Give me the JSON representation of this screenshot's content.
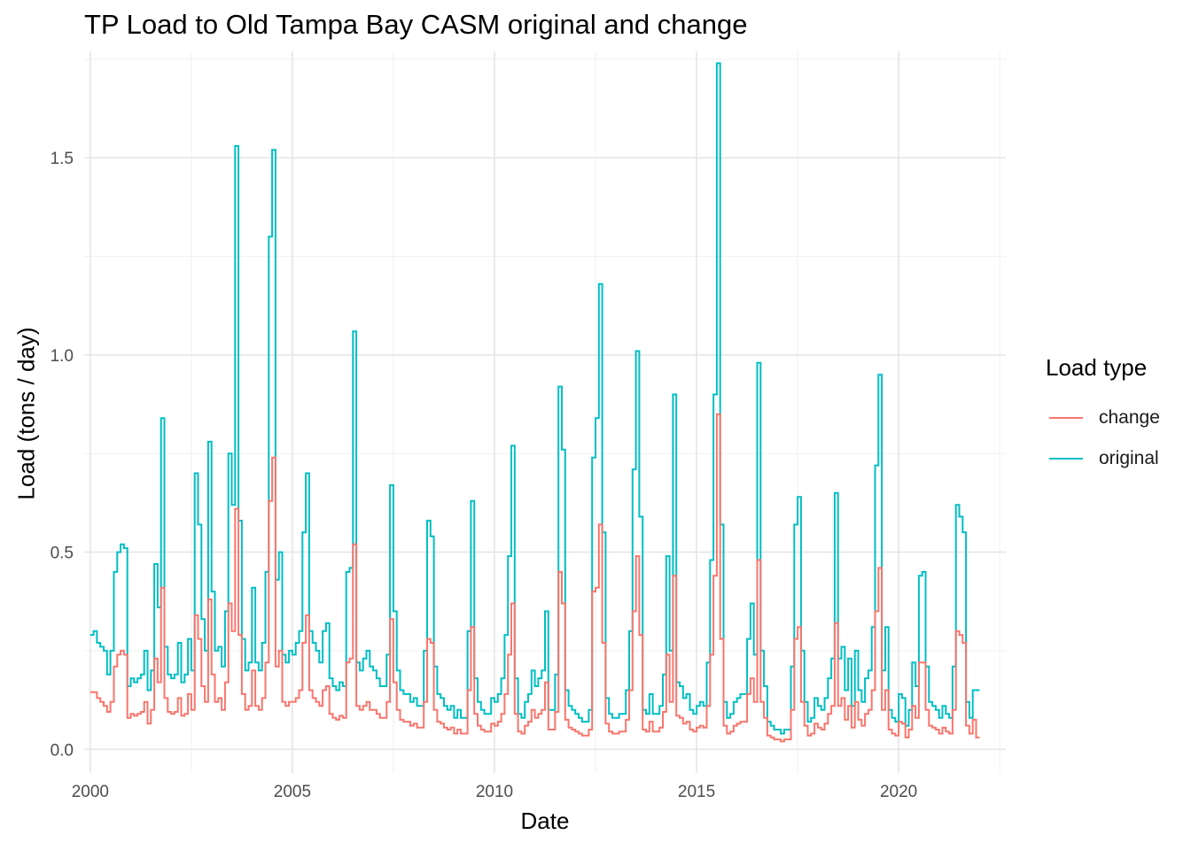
{
  "chart_data": {
    "type": "line",
    "step": true,
    "title": "TP Load to Old Tampa Bay CASM original and change",
    "xlabel": "Date",
    "ylabel": "Load (tons / day)",
    "xlim": [
      1999.85,
      2022.65
    ],
    "ylim": [
      -0.06,
      1.77
    ],
    "x_ticks": [
      2000,
      2005,
      2010,
      2015,
      2020
    ],
    "x_tick_labels": [
      "2000",
      "2005",
      "2010",
      "2015",
      "2020"
    ],
    "y_ticks": [
      0.0,
      0.5,
      1.0,
      1.5
    ],
    "y_tick_labels": [
      "0.0",
      "0.5",
      "1.0",
      "1.5"
    ],
    "grid": true,
    "legend": {
      "title": "Load type",
      "position": "right"
    },
    "colors": {
      "change": "#F8766D",
      "original": "#00BFC4"
    },
    "series": [
      {
        "name": "original",
        "x_start": 2000.0,
        "step_months": 1,
        "values": [
          0.29,
          0.3,
          0.27,
          0.26,
          0.25,
          0.19,
          0.25,
          0.45,
          0.5,
          0.52,
          0.51,
          0.16,
          0.18,
          0.17,
          0.18,
          0.19,
          0.25,
          0.15,
          0.2,
          0.47,
          0.36,
          0.84,
          0.26,
          0.19,
          0.18,
          0.19,
          0.27,
          0.17,
          0.19,
          0.28,
          0.2,
          0.7,
          0.57,
          0.33,
          0.25,
          0.78,
          0.4,
          0.25,
          0.26,
          0.21,
          0.35,
          0.75,
          0.62,
          1.53,
          0.58,
          0.28,
          0.2,
          0.22,
          0.41,
          0.22,
          0.2,
          0.27,
          0.45,
          1.3,
          1.52,
          0.43,
          0.5,
          0.24,
          0.22,
          0.25,
          0.24,
          0.27,
          0.3,
          0.55,
          0.7,
          0.3,
          0.27,
          0.25,
          0.22,
          0.3,
          0.32,
          0.18,
          0.16,
          0.15,
          0.17,
          0.16,
          0.45,
          0.46,
          1.06,
          0.22,
          0.2,
          0.23,
          0.25,
          0.21,
          0.2,
          0.18,
          0.16,
          0.16,
          0.24,
          0.67,
          0.35,
          0.2,
          0.15,
          0.14,
          0.14,
          0.12,
          0.13,
          0.11,
          0.11,
          0.25,
          0.58,
          0.54,
          0.21,
          0.14,
          0.13,
          0.11,
          0.1,
          0.11,
          0.08,
          0.1,
          0.08,
          0.08,
          0.3,
          0.63,
          0.18,
          0.12,
          0.1,
          0.09,
          0.09,
          0.13,
          0.12,
          0.14,
          0.18,
          0.29,
          0.49,
          0.77,
          0.18,
          0.09,
          0.08,
          0.12,
          0.14,
          0.2,
          0.16,
          0.18,
          0.2,
          0.35,
          0.1,
          0.1,
          0.19,
          0.92,
          0.76,
          0.15,
          0.11,
          0.1,
          0.09,
          0.08,
          0.07,
          0.07,
          0.1,
          0.74,
          0.84,
          1.18,
          0.55,
          0.13,
          0.09,
          0.08,
          0.08,
          0.09,
          0.09,
          0.15,
          0.3,
          0.71,
          1.01,
          0.59,
          0.1,
          0.09,
          0.14,
          0.09,
          0.09,
          0.11,
          0.19,
          0.49,
          0.25,
          0.9,
          0.17,
          0.16,
          0.13,
          0.14,
          0.1,
          0.09,
          0.11,
          0.12,
          0.11,
          0.22,
          0.48,
          0.9,
          1.74,
          0.57,
          0.12,
          0.08,
          0.09,
          0.12,
          0.13,
          0.14,
          0.14,
          0.28,
          0.37,
          0.24,
          0.98,
          0.25,
          0.16,
          0.07,
          0.06,
          0.05,
          0.05,
          0.04,
          0.05,
          0.05,
          0.21,
          0.57,
          0.64,
          0.25,
          0.12,
          0.07,
          0.08,
          0.13,
          0.11,
          0.1,
          0.13,
          0.18,
          0.23,
          0.65,
          0.23,
          0.26,
          0.15,
          0.23,
          0.11,
          0.25,
          0.15,
          0.12,
          0.18,
          0.2,
          0.31,
          0.72,
          0.95,
          0.2,
          0.31,
          0.1,
          0.08,
          0.07,
          0.14,
          0.13,
          0.06,
          0.1,
          0.22,
          0.16,
          0.44,
          0.45,
          0.21,
          0.12,
          0.11,
          0.1,
          0.08,
          0.11,
          0.09,
          0.08,
          0.21,
          0.62,
          0.59,
          0.55,
          0.12,
          0.08,
          0.15,
          0.15
        ]
      },
      {
        "name": "change",
        "x_start": 2000.0,
        "step_months": 1,
        "values": [
          0.145,
          0.145,
          0.13,
          0.12,
          0.11,
          0.095,
          0.12,
          0.21,
          0.24,
          0.25,
          0.24,
          0.08,
          0.09,
          0.085,
          0.09,
          0.095,
          0.12,
          0.065,
          0.1,
          0.23,
          0.17,
          0.41,
          0.13,
          0.095,
          0.09,
          0.095,
          0.13,
          0.085,
          0.09,
          0.14,
          0.1,
          0.34,
          0.28,
          0.16,
          0.12,
          0.38,
          0.19,
          0.12,
          0.13,
          0.1,
          0.17,
          0.37,
          0.3,
          0.61,
          0.29,
          0.14,
          0.1,
          0.11,
          0.2,
          0.11,
          0.1,
          0.13,
          0.22,
          0.63,
          0.74,
          0.21,
          0.25,
          0.12,
          0.11,
          0.12,
          0.12,
          0.13,
          0.15,
          0.27,
          0.34,
          0.15,
          0.13,
          0.12,
          0.11,
          0.15,
          0.16,
          0.09,
          0.08,
          0.075,
          0.085,
          0.08,
          0.22,
          0.23,
          0.52,
          0.11,
          0.1,
          0.11,
          0.12,
          0.1,
          0.1,
          0.09,
          0.08,
          0.08,
          0.12,
          0.33,
          0.17,
          0.1,
          0.075,
          0.07,
          0.07,
          0.06,
          0.065,
          0.055,
          0.055,
          0.12,
          0.28,
          0.27,
          0.1,
          0.07,
          0.065,
          0.055,
          0.05,
          0.055,
          0.04,
          0.05,
          0.04,
          0.04,
          0.15,
          0.31,
          0.09,
          0.06,
          0.05,
          0.045,
          0.045,
          0.065,
          0.06,
          0.07,
          0.09,
          0.14,
          0.24,
          0.37,
          0.09,
          0.045,
          0.04,
          0.06,
          0.07,
          0.1,
          0.08,
          0.09,
          0.1,
          0.17,
          0.05,
          0.05,
          0.095,
          0.45,
          0.37,
          0.075,
          0.055,
          0.05,
          0.045,
          0.04,
          0.035,
          0.035,
          0.05,
          0.4,
          0.41,
          0.57,
          0.27,
          0.065,
          0.045,
          0.04,
          0.04,
          0.045,
          0.045,
          0.075,
          0.15,
          0.35,
          0.49,
          0.29,
          0.05,
          0.045,
          0.07,
          0.045,
          0.045,
          0.055,
          0.095,
          0.24,
          0.12,
          0.44,
          0.085,
          0.08,
          0.065,
          0.07,
          0.05,
          0.045,
          0.055,
          0.06,
          0.055,
          0.11,
          0.24,
          0.44,
          0.85,
          0.28,
          0.06,
          0.04,
          0.045,
          0.06,
          0.065,
          0.07,
          0.07,
          0.14,
          0.18,
          0.12,
          0.48,
          0.12,
          0.08,
          0.035,
          0.03,
          0.025,
          0.025,
          0.02,
          0.025,
          0.025,
          0.1,
          0.28,
          0.31,
          0.12,
          0.06,
          0.035,
          0.04,
          0.065,
          0.055,
          0.05,
          0.065,
          0.09,
          0.11,
          0.32,
          0.11,
          0.13,
          0.075,
          0.11,
          0.055,
          0.12,
          0.075,
          0.06,
          0.09,
          0.1,
          0.15,
          0.35,
          0.46,
          0.1,
          0.15,
          0.05,
          0.04,
          0.035,
          0.07,
          0.065,
          0.03,
          0.05,
          0.11,
          0.08,
          0.22,
          0.22,
          0.1,
          0.06,
          0.055,
          0.05,
          0.04,
          0.055,
          0.045,
          0.04,
          0.1,
          0.3,
          0.29,
          0.27,
          0.06,
          0.04,
          0.075,
          0.03
        ]
      }
    ]
  }
}
